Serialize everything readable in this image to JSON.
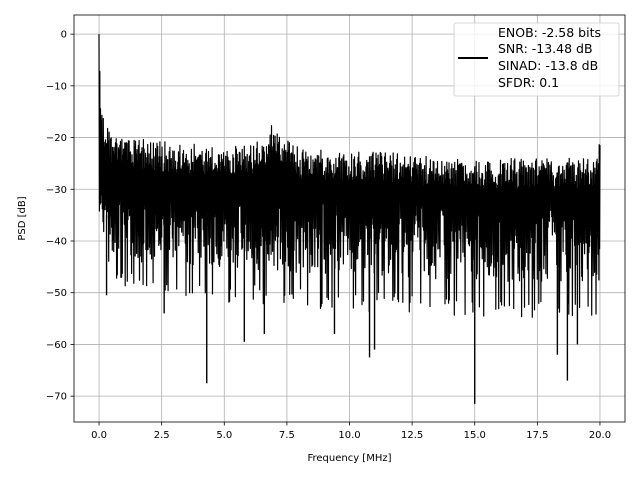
{
  "chart_data": {
    "type": "line",
    "title": "",
    "xlabel": "Frequency [MHz]",
    "ylabel": "PSD [dB]",
    "xlim": [
      -1,
      21
    ],
    "ylim": [
      -75,
      3.7
    ],
    "xticks": [
      0.0,
      2.5,
      5.0,
      7.5,
      10.0,
      12.5,
      15.0,
      17.5,
      20.0
    ],
    "xtick_labels": [
      "0.0",
      "2.5",
      "5.0",
      "7.5",
      "10.0",
      "12.5",
      "15.0",
      "17.5",
      "20.0"
    ],
    "yticks": [
      0,
      -10,
      -20,
      -30,
      -40,
      -50,
      -60,
      -70
    ],
    "ytick_labels": [
      "0",
      "−10",
      "−20",
      "−30",
      "−40",
      "−50",
      "−60",
      "−70"
    ],
    "grid": true,
    "line_color": "#000000",
    "upper_envelope": {
      "x": [
        0,
        0.05,
        0.2,
        0.5,
        1,
        3,
        5,
        6,
        6.6,
        7.0,
        7.4,
        8,
        10,
        12,
        13,
        15,
        17,
        19.8,
        20
      ],
      "y": [
        0,
        -12,
        -16,
        -19,
        -20,
        -21,
        -21.5,
        -21.5,
        -20,
        -16.5,
        -20,
        -22,
        -22.5,
        -23,
        -23.5,
        -24,
        -24,
        -24,
        -19
      ]
    },
    "lower_envelope": {
      "x": [
        0,
        0.2,
        0.5,
        2,
        5,
        8,
        12,
        16,
        20
      ],
      "y": [
        -35,
        -40,
        -45,
        -47,
        -48,
        -49,
        -50,
        -51,
        -51
      ]
    },
    "deep_minima": {
      "x": [
        0.3,
        2.6,
        4.3,
        5.8,
        6.6,
        9.4,
        10.8,
        11.0,
        15.0,
        18.3,
        18.7,
        19.1
      ],
      "y": [
        -50.5,
        -54,
        -67.5,
        -59.5,
        -58,
        -58,
        -62.5,
        -61,
        -71.5,
        -62,
        -67,
        -60
      ]
    },
    "legend": {
      "placement": "upper right",
      "entries": [
        "ENOB: -2.58 bits\nSNR: -13.48 dB\nSINAD: -13.8 dB\nSFDR: 0.1"
      ],
      "lines": [
        "ENOB: -2.58 bits",
        "SNR: -13.48 dB",
        "SINAD: -13.8 dB",
        "SFDR: 0.1"
      ]
    }
  }
}
